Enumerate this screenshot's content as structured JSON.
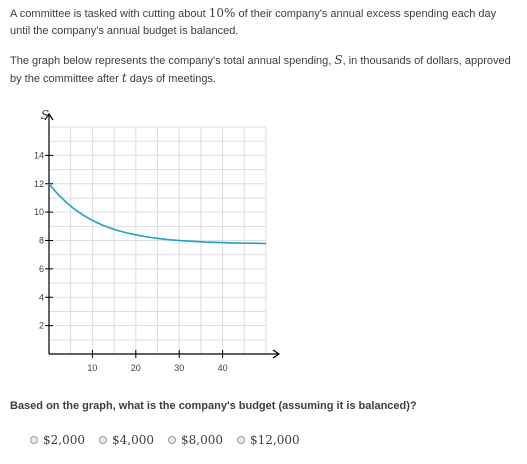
{
  "intro": {
    "p1_a": "A committee is tasked with cutting about ",
    "p1_pct": "10%",
    "p1_b": " of their company's annual excess spending each day until the company's annual budget is balanced.",
    "p2_a": "The graph below represents the company's total annual spending, ",
    "p2_var_s": "S",
    "p2_b": ", in thousands of dollars, approved by the committee after ",
    "p2_var_t": "t",
    "p2_c": " days of meetings."
  },
  "chart_data": {
    "type": "line",
    "xlabel": "t",
    "ylabel": "S",
    "xlim": [
      0,
      50
    ],
    "ylim": [
      0,
      16
    ],
    "x_ticks": [
      10,
      20,
      30,
      40
    ],
    "y_ticks": [
      2,
      4,
      6,
      8,
      10,
      12,
      14
    ],
    "grid": true,
    "series": [
      {
        "color": "#1fa2c1",
        "x": [
          0,
          2,
          4,
          6,
          8,
          10,
          12,
          14,
          16,
          18,
          20,
          22,
          24,
          26,
          28,
          30,
          32,
          34,
          36,
          38,
          40,
          42,
          44,
          46,
          48,
          50
        ],
        "y": [
          12.0,
          11.28,
          10.68,
          10.18,
          9.77,
          9.42,
          9.13,
          8.89,
          8.7,
          8.53,
          8.4,
          8.28,
          8.19,
          8.11,
          8.05,
          8.0,
          7.96,
          7.92,
          7.89,
          7.87,
          7.85,
          7.83,
          7.82,
          7.81,
          7.8,
          7.79
        ]
      }
    ]
  },
  "question": "Based on the graph, what is the company's budget (assuming it is balanced)?",
  "choices": [
    {
      "label": "$2,000"
    },
    {
      "label": "$4,000"
    },
    {
      "label": "$8,000"
    },
    {
      "label": "$12,000"
    }
  ]
}
